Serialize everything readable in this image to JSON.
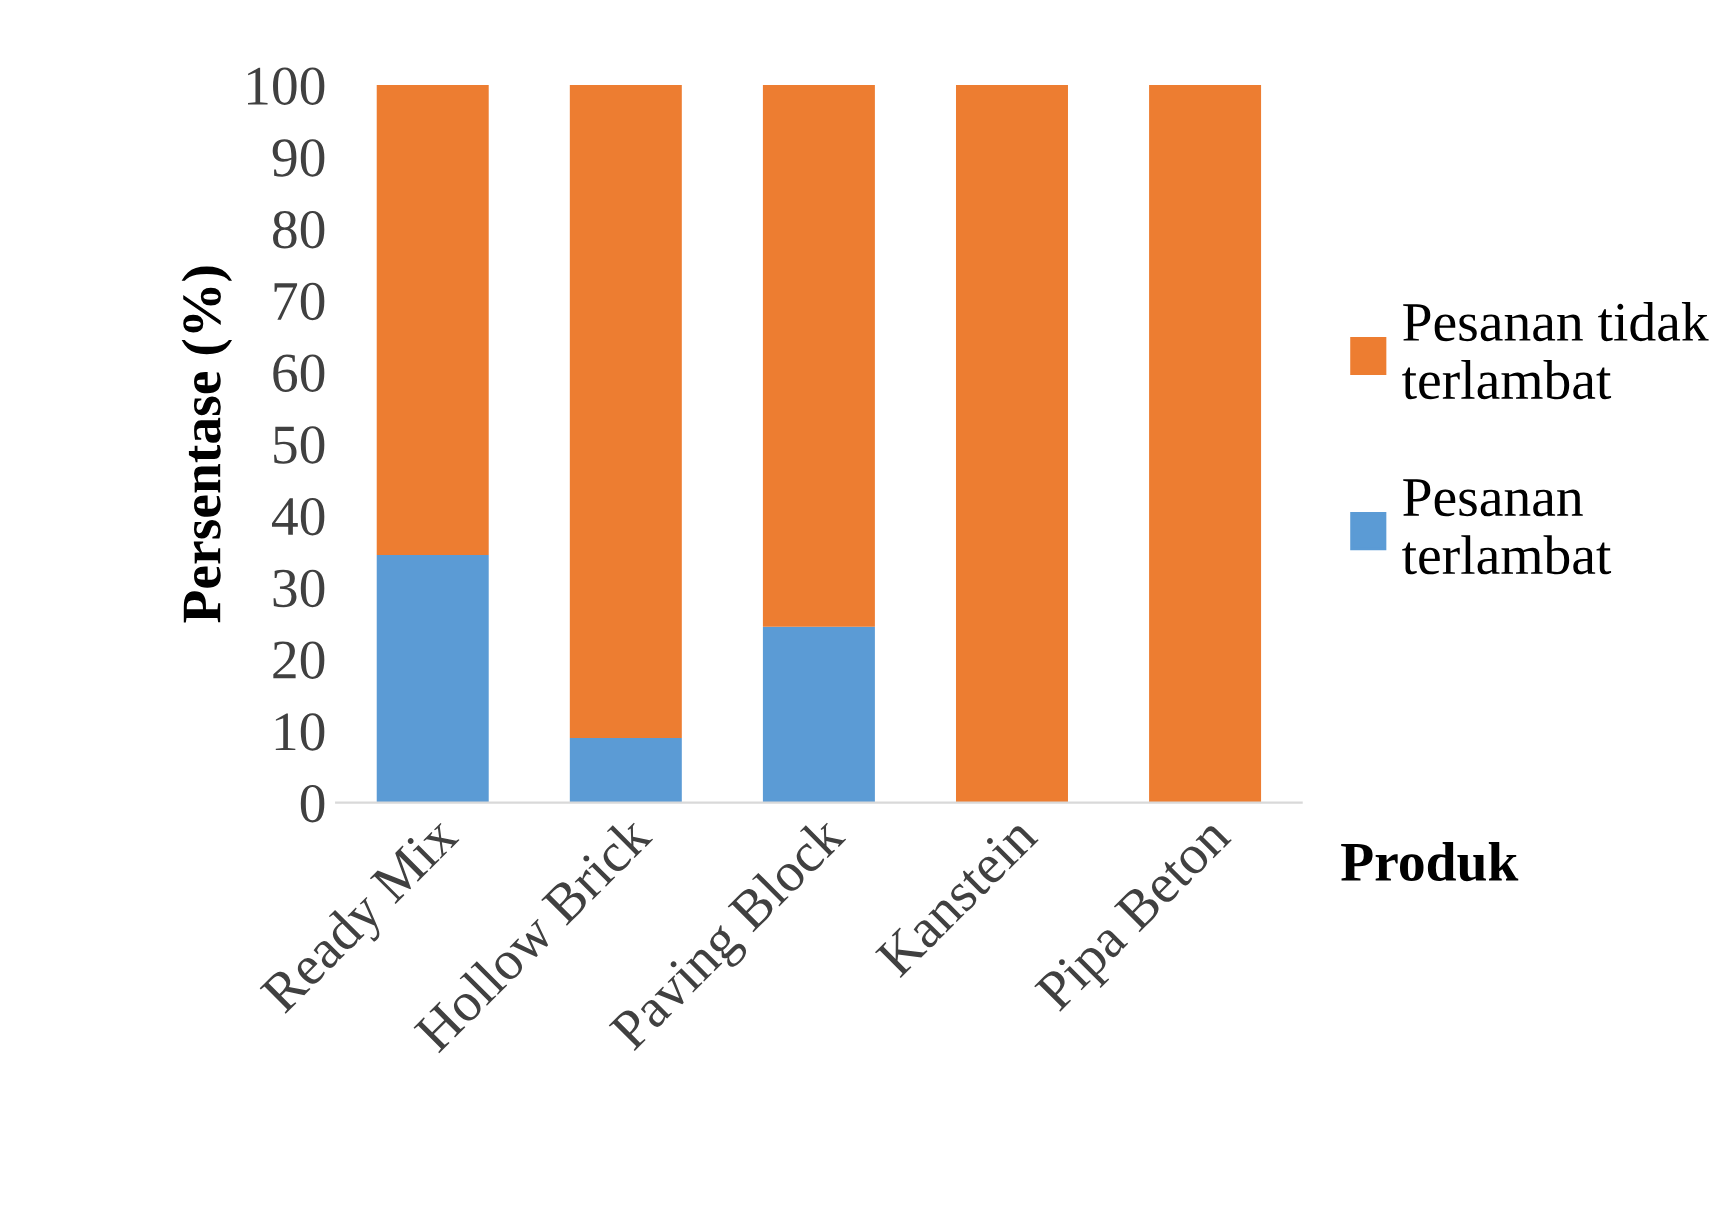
{
  "chart_data": {
    "type": "bar",
    "stacked": true,
    "ylabel": "Persentase (%)",
    "xlabel": "Produk",
    "categories": [
      "Ready Mix",
      "Hollow Brick",
      "Paving Block",
      "Kanstein",
      "Pipa Beton"
    ],
    "series": [
      {
        "name": "Pesanan terlambat",
        "color": "#5b9bd5",
        "values": [
          34.5,
          9,
          24.5,
          0,
          0
        ]
      },
      {
        "name": "Pesanan tidak terlambat",
        "color": "#ed7d31",
        "values": [
          65.5,
          91,
          75.5,
          100,
          100
        ]
      }
    ],
    "ylim": [
      0,
      100
    ],
    "yticks": [
      0,
      10,
      20,
      30,
      40,
      50,
      60,
      70,
      80,
      90,
      100
    ],
    "grid": false,
    "legend": "right"
  }
}
